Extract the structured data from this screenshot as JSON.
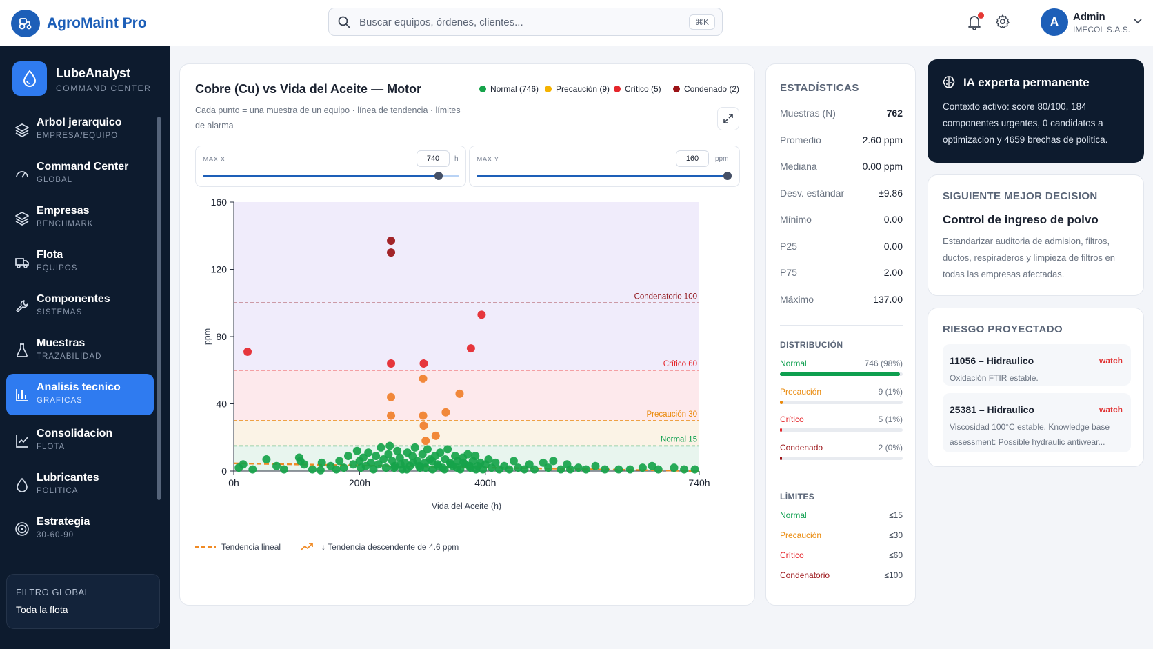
{
  "header": {
    "app_title": "AgroMaint Pro",
    "search_placeholder": "Buscar equipos, órdenes, clientes...",
    "search_shortcut": "⌘K",
    "user_initial": "A",
    "user_name": "Admin",
    "user_org": "IMECOL S.A.S."
  },
  "sidebar": {
    "brand_name": "LubeAnalyst",
    "brand_sub": "COMMAND CENTER",
    "items": [
      {
        "label": "Arbol jerarquico",
        "sub": "EMPRESA/EQUIPO",
        "icon": "layers-icon",
        "active": false
      },
      {
        "label": "Command Center",
        "sub": "GLOBAL",
        "icon": "gauge-icon",
        "active": false
      },
      {
        "label": "Empresas",
        "sub": "BENCHMARK",
        "icon": "layers-icon",
        "active": false
      },
      {
        "label": "Flota",
        "sub": "EQUIPOS",
        "icon": "truck-icon",
        "active": false
      },
      {
        "label": "Componentes",
        "sub": "SISTEMAS",
        "icon": "wrench-icon",
        "active": false
      },
      {
        "label": "Muestras",
        "sub": "TRAZABILIDAD",
        "icon": "flask-icon",
        "active": false
      },
      {
        "label": "Analisis tecnico",
        "sub": "GRAFICAS",
        "icon": "bar-chart-icon",
        "active": true
      },
      {
        "label": "Consolidacion",
        "sub": "FLOTA",
        "icon": "line-chart-icon",
        "active": false
      },
      {
        "label": "Lubricantes",
        "sub": "POLITICA",
        "icon": "droplet-icon",
        "active": false
      },
      {
        "label": "Estrategia",
        "sub": "30-60-90",
        "icon": "target-icon",
        "active": false
      }
    ],
    "filter_title": "FILTRO GLOBAL",
    "filter_value": "Toda la flota"
  },
  "chart_panel": {
    "title": "Cobre (Cu) vs Vida del Aceite — Motor",
    "subtitle": "Cada punto = una muestra de un equipo · línea de tendencia · límites de alarma",
    "legend": [
      {
        "label": "Normal (746)",
        "color": "#16a34a"
      },
      {
        "label": "Precaución (9)",
        "color": "#f5b301"
      },
      {
        "label": "Crítico (5)",
        "color": "#e5262b"
      },
      {
        "label": "Condenado (2)",
        "color": "#9b1216"
      }
    ],
    "max_x_label": "MAX X",
    "max_x_value": "740",
    "max_x_unit": "h",
    "max_x_fraction": 0.92,
    "max_y_label": "MAX Y",
    "max_y_value": "160",
    "max_y_unit": "ppm",
    "max_y_fraction": 1.0,
    "trend_label": "Tendencia lineal",
    "trend_summary": "↓ Tendencia descendente de 4.6 ppm"
  },
  "chart_data": {
    "type": "scatter",
    "xlabel": "Vida del Aceite (h)",
    "ylabel": "ppm",
    "xlim": [
      0,
      740
    ],
    "ylim": [
      0,
      160
    ],
    "x_ticks": [
      {
        "v": 0,
        "label": "0h"
      },
      {
        "v": 200,
        "label": "200h"
      },
      {
        "v": 400,
        "label": "400h"
      },
      {
        "v": 740,
        "label": "740h"
      }
    ],
    "y_ticks": [
      0,
      40,
      80,
      120,
      160
    ],
    "zones": [
      {
        "from": 0,
        "to": 15,
        "color": "#e8f5ee"
      },
      {
        "from": 15,
        "to": 30,
        "color": "#fbf3e6"
      },
      {
        "from": 30,
        "to": 60,
        "color": "#fde9ec"
      },
      {
        "from": 60,
        "to": 160,
        "color": "#f0ecfb"
      }
    ],
    "thresholds": [
      {
        "label": "Normal 15",
        "value": 15,
        "color": "#0e9f4f"
      },
      {
        "label": "Precaución 30",
        "value": 30,
        "color": "#ea8a0c"
      },
      {
        "label": "Crítico 60",
        "value": 60,
        "color": "#e5262b"
      },
      {
        "label": "Condenatorio 100",
        "value": 100,
        "color": "#8f1218"
      }
    ],
    "trend": {
      "x": [
        0,
        740
      ],
      "y": [
        4.6,
        0
      ],
      "color": "#f08a24"
    },
    "series": [
      {
        "name": "Condenado",
        "color": "#9b1216",
        "points": [
          [
            250,
            137
          ],
          [
            250,
            130
          ]
        ]
      },
      {
        "name": "Crítico",
        "color": "#e5262b",
        "points": [
          [
            22,
            71
          ],
          [
            250,
            64
          ],
          [
            302,
            64
          ],
          [
            377,
            73
          ],
          [
            394,
            93
          ]
        ]
      },
      {
        "name": "Precaución",
        "color": "#f07f2a",
        "points": [
          [
            250,
            44
          ],
          [
            250,
            33
          ],
          [
            301,
            55
          ],
          [
            301,
            33
          ],
          [
            337,
            35
          ],
          [
            359,
            46
          ],
          [
            302,
            27
          ],
          [
            305,
            18
          ],
          [
            321,
            21
          ]
        ]
      },
      {
        "name": "Normal",
        "color": "#16a34a",
        "points": [
          [
            8,
            2
          ],
          [
            15,
            4
          ],
          [
            30,
            1
          ],
          [
            52,
            7
          ],
          [
            68,
            3
          ],
          [
            80,
            1
          ],
          [
            104,
            8
          ],
          [
            106,
            6
          ],
          [
            112,
            4
          ],
          [
            125,
            1
          ],
          [
            138,
            0.5
          ],
          [
            140,
            5
          ],
          [
            154,
            3
          ],
          [
            163,
            1
          ],
          [
            168,
            6
          ],
          [
            175,
            2
          ],
          [
            182,
            9
          ],
          [
            190,
            4
          ],
          [
            196,
            12
          ],
          [
            200,
            6
          ],
          [
            202,
            2
          ],
          [
            206,
            8
          ],
          [
            210,
            3
          ],
          [
            214,
            11
          ],
          [
            218,
            5
          ],
          [
            222,
            1
          ],
          [
            226,
            9
          ],
          [
            230,
            4
          ],
          [
            234,
            14
          ],
          [
            238,
            7
          ],
          [
            242,
            2
          ],
          [
            246,
            10
          ],
          [
            248,
            15
          ],
          [
            252,
            6
          ],
          [
            256,
            3
          ],
          [
            260,
            12
          ],
          [
            264,
            8
          ],
          [
            268,
            1
          ],
          [
            272,
            5
          ],
          [
            276,
            11
          ],
          [
            280,
            3
          ],
          [
            284,
            9
          ],
          [
            288,
            14
          ],
          [
            292,
            6
          ],
          [
            296,
            2
          ],
          [
            300,
            10
          ],
          [
            304,
            5
          ],
          [
            308,
            13
          ],
          [
            312,
            7
          ],
          [
            316,
            1
          ],
          [
            320,
            9
          ],
          [
            324,
            4
          ],
          [
            328,
            11
          ],
          [
            332,
            2
          ],
          [
            336,
            7
          ],
          [
            340,
            13
          ],
          [
            344,
            5
          ],
          [
            348,
            3
          ],
          [
            352,
            9
          ],
          [
            356,
            6
          ],
          [
            360,
            1
          ],
          [
            364,
            8
          ],
          [
            368,
            4
          ],
          [
            372,
            10
          ],
          [
            376,
            2
          ],
          [
            380,
            6
          ],
          [
            384,
            9
          ],
          [
            388,
            3
          ],
          [
            392,
            5
          ],
          [
            396,
            1
          ],
          [
            400,
            4
          ],
          [
            405,
            7
          ],
          [
            410,
            2
          ],
          [
            416,
            5
          ],
          [
            422,
            1
          ],
          [
            430,
            3
          ],
          [
            438,
            1
          ],
          [
            445,
            6
          ],
          [
            452,
            2
          ],
          [
            462,
            1
          ],
          [
            470,
            4
          ],
          [
            478,
            1
          ],
          [
            492,
            5
          ],
          [
            500,
            2
          ],
          [
            508,
            6
          ],
          [
            520,
            1
          ],
          [
            530,
            4
          ],
          [
            535,
            1
          ],
          [
            548,
            2
          ],
          [
            560,
            1
          ],
          [
            575,
            3
          ],
          [
            590,
            1
          ],
          [
            612,
            1
          ],
          [
            630,
            1
          ],
          [
            650,
            2
          ],
          [
            665,
            3
          ],
          [
            675,
            1
          ],
          [
            700,
            2
          ],
          [
            716,
            1
          ],
          [
            733,
            1
          ],
          [
            255,
            2
          ],
          [
            265,
            4
          ],
          [
            275,
            1
          ],
          [
            285,
            5
          ],
          [
            295,
            3
          ],
          [
            305,
            2
          ],
          [
            315,
            6
          ],
          [
            325,
            3
          ],
          [
            335,
            1
          ],
          [
            345,
            4
          ],
          [
            355,
            2
          ],
          [
            365,
            5
          ],
          [
            375,
            3
          ],
          [
            385,
            1
          ]
        ]
      }
    ]
  },
  "stats": {
    "title": "ESTADÍSTICAS",
    "rows": [
      {
        "label": "Muestras (N)",
        "value": "762"
      },
      {
        "label": "Promedio",
        "value": "2.60 ppm"
      },
      {
        "label": "Mediana",
        "value": "0.00 ppm"
      },
      {
        "label": "Desv. estándar",
        "value": "±9.86"
      },
      {
        "label": "Mínimo",
        "value": "0.00"
      },
      {
        "label": "P25",
        "value": "0.00"
      },
      {
        "label": "P75",
        "value": "2.00"
      },
      {
        "label": "Máximo",
        "value": "137.00"
      }
    ],
    "dist_title": "DISTRIBUCIÓN",
    "distribution": [
      {
        "label": "Normal",
        "value": "746 (98%)",
        "fraction": 0.98,
        "color": "#0e9f4f"
      },
      {
        "label": "Precaución",
        "value": "9 (1%)",
        "fraction": 0.02,
        "color": "#ea8a0c"
      },
      {
        "label": "Crítico",
        "value": "5 (1%)",
        "fraction": 0.01,
        "color": "#e5262b"
      },
      {
        "label": "Condenado",
        "value": "2 (0%)",
        "fraction": 0.01,
        "color": "#9b1216"
      }
    ],
    "limits_title": "LÍMITES",
    "limits": [
      {
        "label": "Normal",
        "value": "≤15",
        "color": "#0e9f4f"
      },
      {
        "label": "Precaución",
        "value": "≤30",
        "color": "#ea8a0c"
      },
      {
        "label": "Crítico",
        "value": "≤60",
        "color": "#e5262b"
      },
      {
        "label": "Condenatorio",
        "value": "≤100",
        "color": "#9b1216"
      }
    ]
  },
  "ia": {
    "title": "IA experta permanente",
    "text": "Contexto activo: score 80/100, 184 componentes urgentes, 0 candidatos a optimizacion y 4659 brechas de politica."
  },
  "next_decision": {
    "heading": "SIGUIENTE MEJOR DECISION",
    "title": "Control de ingreso de polvo",
    "text": "Estandarizar auditoria de admision, filtros, ductos, respiraderos y limpieza de filtros en todas las empresas afectadas."
  },
  "risk": {
    "heading": "RIESGO PROYECTADO",
    "items": [
      {
        "title": "11056 – Hidraulico",
        "badge": "watch",
        "desc": "Oxidación FTIR estable."
      },
      {
        "title": "25381 – Hidraulico",
        "badge": "watch",
        "desc": "Viscosidad 100°C estable. Knowledge base assessment: Possible hydraulic antiwear..."
      }
    ]
  }
}
